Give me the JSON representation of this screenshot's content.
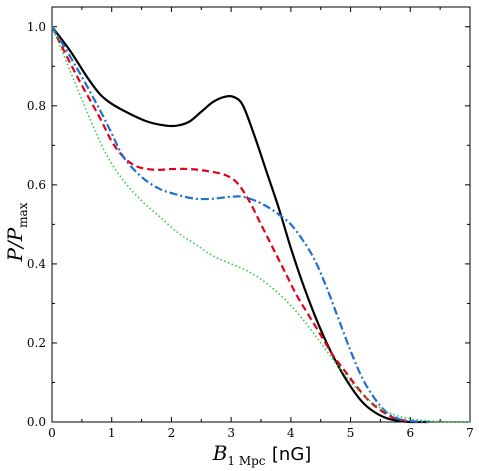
{
  "chart_data": {
    "type": "line",
    "xlabel": "B",
    "xlabel_sub": "1 Mpc",
    "xlabel_unit": "[nG]",
    "ylabel": "P/P",
    "ylabel_sub": "max",
    "xlim": [
      0,
      7
    ],
    "ylim": [
      0,
      1.05
    ],
    "xticks": [
      "0",
      "1",
      "2",
      "3",
      "4",
      "5",
      "6",
      "7"
    ],
    "yticks": [
      "0.0",
      "0.2",
      "0.4",
      "0.6",
      "0.8",
      "1.0"
    ],
    "grid": false,
    "legend": "none",
    "series": [
      {
        "color": "#000000",
        "style": "solid",
        "x": [
          0,
          0.3,
          0.6,
          0.8,
          1.0,
          1.3,
          1.6,
          1.9,
          2.1,
          2.3,
          2.5,
          2.7,
          2.9,
          3.05,
          3.2,
          3.4,
          3.6,
          3.8,
          4.0,
          4.2,
          4.4,
          4.6,
          4.8,
          5.0,
          5.2,
          5.4,
          5.6,
          5.8,
          6.0,
          6.3
        ],
        "y": [
          1.0,
          0.94,
          0.87,
          0.83,
          0.805,
          0.78,
          0.76,
          0.75,
          0.75,
          0.76,
          0.785,
          0.81,
          0.823,
          0.822,
          0.8,
          0.72,
          0.63,
          0.54,
          0.44,
          0.35,
          0.27,
          0.2,
          0.14,
          0.09,
          0.05,
          0.025,
          0.01,
          0.003,
          0.0,
          0.0
        ]
      },
      {
        "color": "#e3001b",
        "style": "dashed",
        "x": [
          0,
          0.4,
          0.8,
          1.0,
          1.2,
          1.4,
          1.6,
          1.8,
          2.0,
          2.3,
          2.6,
          2.9,
          3.1,
          3.3,
          3.5,
          3.7,
          3.9,
          4.1,
          4.3,
          4.5,
          4.7,
          4.9,
          5.1,
          5.3,
          5.5,
          5.7,
          5.9,
          6.2
        ],
        "y": [
          1.0,
          0.88,
          0.77,
          0.71,
          0.67,
          0.648,
          0.64,
          0.638,
          0.64,
          0.64,
          0.635,
          0.625,
          0.605,
          0.56,
          0.5,
          0.44,
          0.38,
          0.32,
          0.27,
          0.22,
          0.17,
          0.13,
          0.09,
          0.055,
          0.03,
          0.012,
          0.004,
          0.0
        ]
      },
      {
        "color": "#1f6fd1",
        "style": "dashdot",
        "x": [
          0,
          0.4,
          0.8,
          1.0,
          1.2,
          1.5,
          1.8,
          2.1,
          2.4,
          2.7,
          3.0,
          3.2,
          3.4,
          3.6,
          3.8,
          4.0,
          4.2,
          4.4,
          4.6,
          4.8,
          5.0,
          5.2,
          5.4,
          5.6,
          5.8,
          6.0,
          6.3
        ],
        "y": [
          1.0,
          0.9,
          0.79,
          0.73,
          0.67,
          0.62,
          0.59,
          0.575,
          0.565,
          0.565,
          0.57,
          0.57,
          0.56,
          0.545,
          0.525,
          0.5,
          0.46,
          0.41,
          0.34,
          0.26,
          0.18,
          0.11,
          0.06,
          0.025,
          0.008,
          0.002,
          0.0
        ]
      },
      {
        "color": "#2ecc40",
        "style": "dotted",
        "x": [
          0,
          0.3,
          0.6,
          0.9,
          1.2,
          1.5,
          1.8,
          2.1,
          2.4,
          2.7,
          3.0,
          3.3,
          3.6,
          3.9,
          4.2,
          4.5,
          4.8,
          5.1,
          5.4,
          5.7,
          6.0,
          6.3,
          6.6,
          7.0
        ],
        "y": [
          1.0,
          0.89,
          0.78,
          0.68,
          0.61,
          0.56,
          0.52,
          0.48,
          0.45,
          0.42,
          0.4,
          0.38,
          0.35,
          0.31,
          0.26,
          0.2,
          0.14,
          0.085,
          0.045,
          0.02,
          0.008,
          0.003,
          0.001,
          0.0
        ]
      }
    ]
  }
}
